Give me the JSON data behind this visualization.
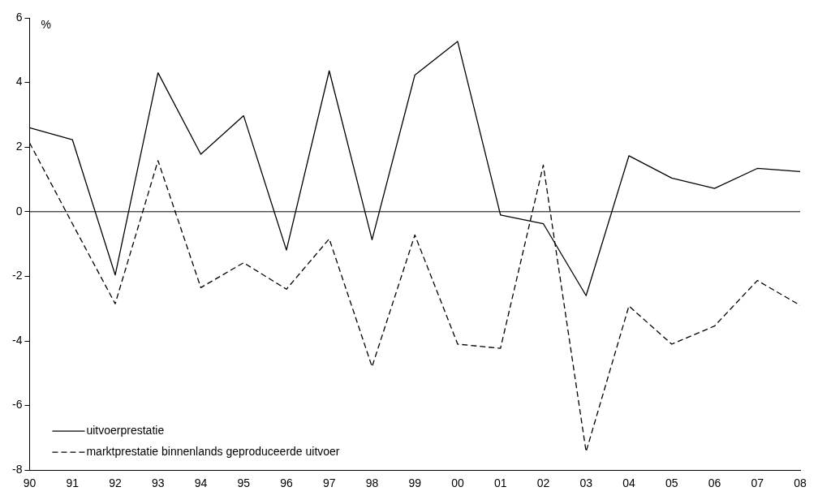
{
  "chart_data": {
    "type": "line",
    "ylabel": "%",
    "categories": [
      "90",
      "91",
      "92",
      "93",
      "94",
      "95",
      "96",
      "97",
      "98",
      "99",
      "00",
      "01",
      "02",
      "03",
      "04",
      "05",
      "06",
      "07",
      "08"
    ],
    "series": [
      {
        "name": "uitvoerprestatie",
        "color": "#000000",
        "line_style": "solid",
        "values": [
          2.6,
          2.23,
          -1.96,
          4.3,
          1.78,
          2.97,
          -1.19,
          4.36,
          -0.87,
          4.23,
          5.27,
          -0.1,
          -0.37,
          -2.6,
          1.73,
          1.04,
          0.72,
          1.34,
          1.24
        ]
      },
      {
        "name": "marktprestatie binnenlands geproduceerde uitvoer",
        "color": "#000000",
        "line_style": "dashed",
        "values": [
          2.13,
          -0.37,
          -2.85,
          1.58,
          -2.35,
          -1.58,
          -2.4,
          -0.84,
          -4.8,
          -0.72,
          -4.1,
          -4.23,
          1.44,
          -7.43,
          -2.92,
          -4.1,
          -3.54,
          -2.13,
          -2.9
        ]
      }
    ],
    "ylim": [
      -8,
      6
    ],
    "yticks": [
      -8,
      -6,
      -4,
      -2,
      0,
      2,
      4,
      6
    ],
    "ref_lines": [
      {
        "axis": "y",
        "value": 0,
        "color": "#000000"
      }
    ],
    "grid": false,
    "legend": "bottom left",
    "marker": "none"
  }
}
